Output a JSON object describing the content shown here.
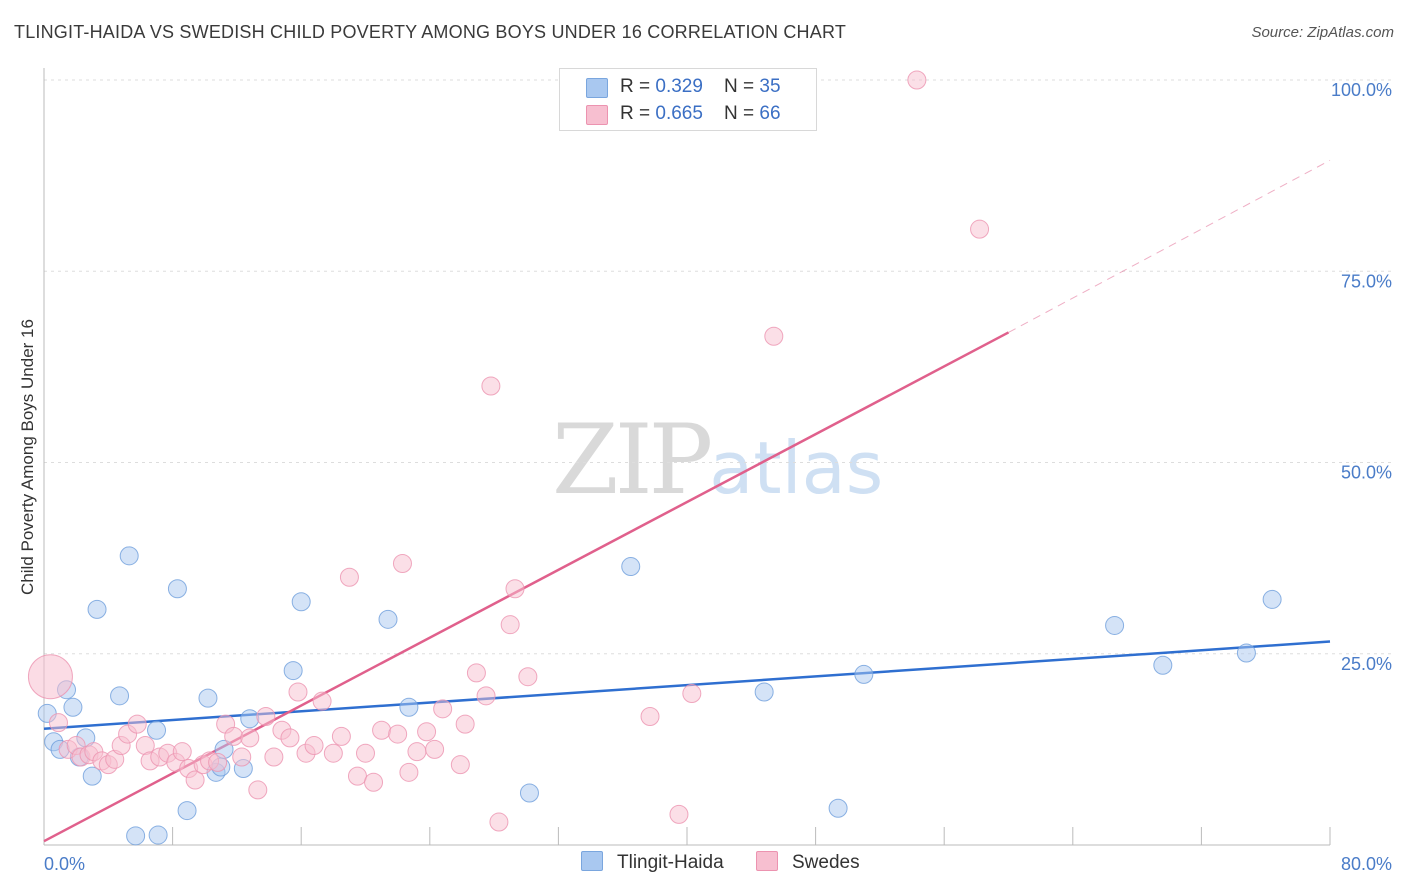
{
  "header": {
    "title": "TLINGIT-HAIDA VS SWEDISH CHILD POVERTY AMONG BOYS UNDER 16 CORRELATION CHART",
    "source": "Source: ZipAtlas.com"
  },
  "watermark": {
    "zip": "ZIP",
    "atlas": "atlas"
  },
  "legend": {
    "rows": [
      {
        "r_label": "R = ",
        "r_value": "0.329",
        "n_label": "N = ",
        "n_value": "35",
        "color": "#a9c8f0",
        "border": "#7aa6de"
      },
      {
        "r_label": "R = ",
        "r_value": "0.665",
        "n_label": "N = ",
        "n_value": "66",
        "color": "#f7bfd0",
        "border": "#ec93b0"
      }
    ]
  },
  "bottom_legend": {
    "series1": "Tlingit-Haida",
    "series2": "Swedes"
  },
  "chart_data": {
    "type": "scatter",
    "title": "TLINGIT-HAIDA VS SWEDISH CHILD POVERTY AMONG BOYS UNDER 16 CORRELATION CHART",
    "xlabel": "",
    "ylabel": "Child Poverty Among Boys Under 16",
    "xlim": [
      0,
      80
    ],
    "ylim": [
      0,
      100
    ],
    "x_tick_labels": [
      "0.0%",
      "80.0%"
    ],
    "y_ticks": [
      25,
      50,
      75,
      100
    ],
    "y_tick_labels": [
      "25.0%",
      "50.0%",
      "75.0%",
      "100.0%"
    ],
    "grid": true,
    "series": [
      {
        "name": "Tlingit-Haida",
        "color": "#a9c8f0",
        "stroke": "#6f9fdc",
        "trend": {
          "x0": 0,
          "y0": 15.2,
          "x1": 80,
          "y1": 26.6,
          "color": "#2f6fd0"
        },
        "points": [
          [
            0.2,
            17.2
          ],
          [
            0.6,
            13.5
          ],
          [
            1.0,
            12.5
          ],
          [
            1.4,
            20.3
          ],
          [
            1.8,
            18.0
          ],
          [
            2.2,
            11.5
          ],
          [
            2.6,
            14.0
          ],
          [
            3.0,
            9.0
          ],
          [
            3.3,
            30.8
          ],
          [
            4.7,
            19.5
          ],
          [
            5.3,
            37.8
          ],
          [
            5.7,
            1.2
          ],
          [
            7.0,
            15.0
          ],
          [
            7.1,
            1.3
          ],
          [
            8.3,
            33.5
          ],
          [
            8.9,
            4.5
          ],
          [
            10.2,
            19.2
          ],
          [
            10.7,
            9.5
          ],
          [
            11.0,
            10.2
          ],
          [
            11.2,
            12.5
          ],
          [
            12.4,
            10.0
          ],
          [
            12.8,
            16.5
          ],
          [
            15.5,
            22.8
          ],
          [
            16.0,
            31.8
          ],
          [
            21.4,
            29.5
          ],
          [
            22.7,
            18.0
          ],
          [
            30.2,
            6.8
          ],
          [
            36.5,
            36.4
          ],
          [
            44.8,
            20.0
          ],
          [
            49.4,
            4.8
          ],
          [
            51.0,
            22.3
          ],
          [
            66.6,
            28.7
          ],
          [
            69.6,
            23.5
          ],
          [
            74.8,
            25.1
          ],
          [
            76.4,
            32.1
          ]
        ]
      },
      {
        "name": "Swedes",
        "color": "#f7bfd0",
        "stroke": "#ec93b0",
        "trend": {
          "x0": 0,
          "y0": 0.5,
          "x1": 60,
          "y1": 67.0,
          "dash_to_x": 80,
          "dash_to_y": 89.5,
          "color": "#e0608c"
        },
        "points": [
          [
            0.4,
            22.0
          ],
          [
            0.9,
            16.0
          ],
          [
            1.5,
            12.5
          ],
          [
            2.0,
            13.0
          ],
          [
            2.3,
            11.5
          ],
          [
            2.8,
            11.8
          ],
          [
            3.1,
            12.2
          ],
          [
            3.6,
            11.0
          ],
          [
            4.0,
            10.5
          ],
          [
            4.4,
            11.2
          ],
          [
            4.8,
            13.0
          ],
          [
            5.2,
            14.5
          ],
          [
            5.8,
            15.8
          ],
          [
            6.3,
            13.0
          ],
          [
            6.6,
            11.0
          ],
          [
            7.2,
            11.5
          ],
          [
            7.7,
            12.0
          ],
          [
            8.2,
            10.8
          ],
          [
            8.6,
            12.2
          ],
          [
            9.0,
            10.0
          ],
          [
            9.4,
            8.5
          ],
          [
            9.9,
            10.5
          ],
          [
            10.3,
            11.0
          ],
          [
            10.8,
            10.8
          ],
          [
            11.3,
            15.8
          ],
          [
            11.8,
            14.2
          ],
          [
            12.3,
            11.5
          ],
          [
            12.8,
            14.0
          ],
          [
            13.3,
            7.2
          ],
          [
            13.8,
            16.8
          ],
          [
            14.3,
            11.5
          ],
          [
            14.8,
            15.0
          ],
          [
            15.3,
            14.0
          ],
          [
            15.8,
            20.0
          ],
          [
            16.3,
            12.0
          ],
          [
            16.8,
            13.0
          ],
          [
            17.3,
            18.8
          ],
          [
            18.0,
            12.0
          ],
          [
            18.5,
            14.2
          ],
          [
            19.0,
            35.0
          ],
          [
            19.5,
            9.0
          ],
          [
            20.0,
            12.0
          ],
          [
            20.5,
            8.2
          ],
          [
            21.0,
            15.0
          ],
          [
            22.0,
            14.5
          ],
          [
            22.3,
            36.8
          ],
          [
            22.7,
            9.5
          ],
          [
            23.2,
            12.2
          ],
          [
            23.8,
            14.8
          ],
          [
            24.3,
            12.5
          ],
          [
            24.8,
            17.8
          ],
          [
            25.9,
            10.5
          ],
          [
            26.2,
            15.8
          ],
          [
            26.9,
            22.5
          ],
          [
            27.5,
            19.5
          ],
          [
            27.8,
            60.0
          ],
          [
            28.3,
            3.0
          ],
          [
            29.0,
            28.8
          ],
          [
            29.3,
            33.5
          ],
          [
            30.1,
            22.0
          ],
          [
            37.7,
            16.8
          ],
          [
            39.5,
            4.0
          ],
          [
            40.3,
            19.8
          ],
          [
            45.4,
            66.5
          ],
          [
            54.3,
            100.0
          ],
          [
            58.2,
            80.5
          ]
        ]
      }
    ]
  }
}
